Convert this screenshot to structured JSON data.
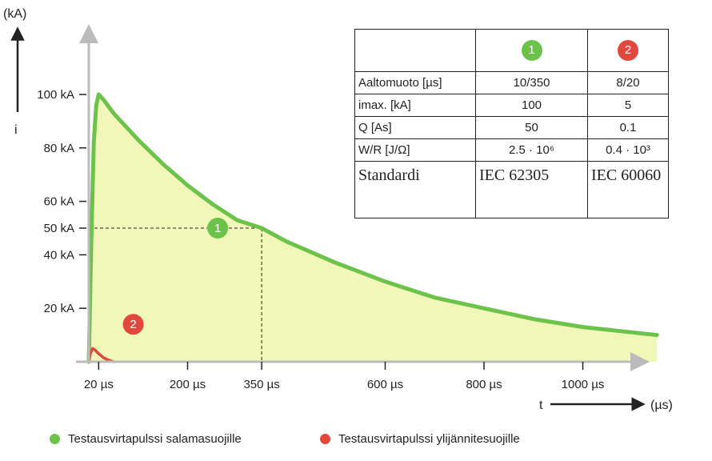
{
  "chart_data": {
    "type": "area",
    "y_unit": "(kA)",
    "y_symbol": "i",
    "x_symbol": "t",
    "x_unit": "(µs)",
    "y_ticks": [
      "100 kA",
      "80 kA",
      "60 kA",
      "50 kA",
      "40 kA",
      "20 kA"
    ],
    "y_tick_values": [
      100,
      80,
      60,
      50,
      40,
      20
    ],
    "x_ticks": [
      "20 µs",
      "200 µs",
      "350 µs",
      "600 µs",
      "800 µs",
      "1000 µs"
    ],
    "x_tick_values": [
      20,
      200,
      350,
      600,
      800,
      1000
    ],
    "xlim": [
      0,
      1150
    ],
    "ylim": [
      0,
      110
    ],
    "series": [
      {
        "label": "1",
        "color": "#6cc24a",
        "fill": "#f0f7b8",
        "x": [
          0,
          5,
          10,
          15,
          20,
          30,
          50,
          100,
          150,
          200,
          250,
          300,
          350,
          400,
          500,
          600,
          700,
          800,
          900,
          1000,
          1100,
          1150
        ],
        "y": [
          0,
          45,
          82,
          96,
          100,
          98,
          93,
          83,
          74,
          66,
          59,
          53,
          50,
          45,
          37,
          30,
          24,
          20,
          16,
          13,
          11,
          10
        ]
      },
      {
        "label": "2",
        "color": "#e0483e",
        "x": [
          0,
          3,
          8,
          12,
          20,
          30,
          40,
          50
        ],
        "y": [
          0,
          3,
          5,
          4.5,
          3,
          1.5,
          0.6,
          0
        ]
      }
    ],
    "markers": [
      {
        "label": "1",
        "x": 350,
        "y": 50,
        "color": "#6cc24a"
      },
      {
        "label": "2",
        "x": 90,
        "y": 14,
        "color": "#e0483e"
      }
    ],
    "guide_point": {
      "x": 350,
      "y": 50
    }
  },
  "table": {
    "badge1": "1",
    "badge2": "2",
    "badge1_color": "#6cc24a",
    "badge2_color": "#e0483e",
    "rows": [
      {
        "label": "Aaltomuoto [µs]",
        "v1": "10/350",
        "v2": "8/20"
      },
      {
        "label": "imax. [kA]",
        "v1": "100",
        "v2": "5"
      },
      {
        "label": "Q [As]",
        "v1": "50",
        "v2": "0.1"
      },
      {
        "label": "W/R [J/Ω]",
        "v1": "2.5 · 10⁶",
        "v2": "0.4 · 10³"
      }
    ],
    "standard_label": "Standardi",
    "standard_1": "IEC 62305",
    "standard_2": "IEC 60060"
  },
  "legend": {
    "item1": "Testausvirtapulssi salamasuojille",
    "item2": "Testausvirtapulssi ylijännitesuojille"
  }
}
